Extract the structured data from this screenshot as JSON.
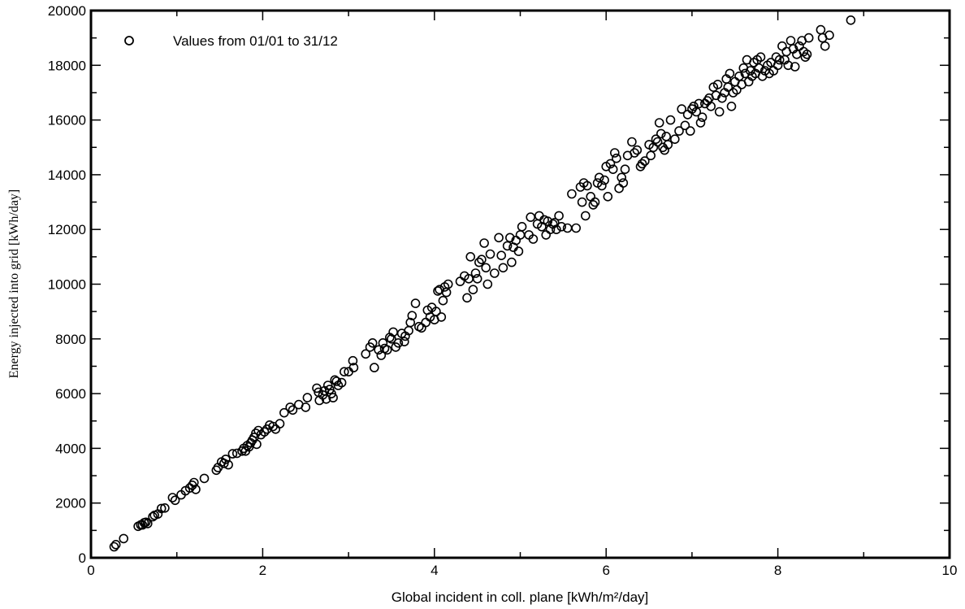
{
  "chart_data": {
    "type": "scatter",
    "title": "",
    "xlabel": "Global incident in coll. plane [kWh/m²/day]",
    "ylabel": "Energy injected into grid [kWh/day]",
    "xlim": [
      0,
      10
    ],
    "ylim": [
      0,
      20000
    ],
    "xticks": [
      0,
      2,
      4,
      6,
      8,
      10
    ],
    "yticks": [
      0,
      2000,
      4000,
      6000,
      8000,
      10000,
      12000,
      14000,
      16000,
      18000,
      20000
    ],
    "grid": false,
    "legend_position": "top-left",
    "marker": "open-circle",
    "series": [
      {
        "name": "Values from 01/01 to 31/12",
        "points": [
          [
            0.27,
            400
          ],
          [
            0.29,
            480
          ],
          [
            0.38,
            700
          ],
          [
            0.55,
            1150
          ],
          [
            0.58,
            1200
          ],
          [
            0.6,
            1200
          ],
          [
            0.62,
            1280
          ],
          [
            0.64,
            1300
          ],
          [
            0.66,
            1250
          ],
          [
            0.72,
            1500
          ],
          [
            0.74,
            1550
          ],
          [
            0.78,
            1600
          ],
          [
            0.82,
            1800
          ],
          [
            0.86,
            1820
          ],
          [
            0.95,
            2200
          ],
          [
            0.98,
            2100
          ],
          [
            1.05,
            2300
          ],
          [
            1.1,
            2450
          ],
          [
            1.15,
            2550
          ],
          [
            1.18,
            2650
          ],
          [
            1.2,
            2750
          ],
          [
            1.22,
            2500
          ],
          [
            1.32,
            2900
          ],
          [
            1.46,
            3200
          ],
          [
            1.48,
            3300
          ],
          [
            1.52,
            3500
          ],
          [
            1.55,
            3450
          ],
          [
            1.57,
            3600
          ],
          [
            1.6,
            3400
          ],
          [
            1.65,
            3800
          ],
          [
            1.7,
            3820
          ],
          [
            1.76,
            3900
          ],
          [
            1.78,
            4000
          ],
          [
            1.8,
            3900
          ],
          [
            1.82,
            4100
          ],
          [
            1.84,
            4050
          ],
          [
            1.86,
            4200
          ],
          [
            1.88,
            4300
          ],
          [
            1.9,
            4400
          ],
          [
            1.92,
            4550
          ],
          [
            1.93,
            4150
          ],
          [
            1.95,
            4650
          ],
          [
            1.98,
            4500
          ],
          [
            2.02,
            4600
          ],
          [
            2.05,
            4700
          ],
          [
            2.08,
            4850
          ],
          [
            2.12,
            4800
          ],
          [
            2.15,
            4700
          ],
          [
            2.2,
            4900
          ],
          [
            2.25,
            5300
          ],
          [
            2.32,
            5500
          ],
          [
            2.35,
            5400
          ],
          [
            2.42,
            5600
          ],
          [
            2.5,
            5500
          ],
          [
            2.52,
            5850
          ],
          [
            2.63,
            6200
          ],
          [
            2.65,
            6050
          ],
          [
            2.66,
            5750
          ],
          [
            2.7,
            5950
          ],
          [
            2.72,
            6100
          ],
          [
            2.74,
            5800
          ],
          [
            2.76,
            6300
          ],
          [
            2.78,
            6150
          ],
          [
            2.8,
            6000
          ],
          [
            2.82,
            5850
          ],
          [
            2.84,
            6500
          ],
          [
            2.86,
            6450
          ],
          [
            2.88,
            6300
          ],
          [
            2.92,
            6400
          ],
          [
            2.95,
            6800
          ],
          [
            3.0,
            6800
          ],
          [
            3.05,
            7200
          ],
          [
            3.06,
            6950
          ],
          [
            3.2,
            7450
          ],
          [
            3.25,
            7700
          ],
          [
            3.28,
            7850
          ],
          [
            3.3,
            6950
          ],
          [
            3.35,
            7600
          ],
          [
            3.38,
            7400
          ],
          [
            3.4,
            7850
          ],
          [
            3.42,
            7650
          ],
          [
            3.45,
            7600
          ],
          [
            3.48,
            8050
          ],
          [
            3.5,
            8000
          ],
          [
            3.52,
            8250
          ],
          [
            3.55,
            7700
          ],
          [
            3.58,
            7850
          ],
          [
            3.62,
            8200
          ],
          [
            3.65,
            7900
          ],
          [
            3.66,
            8100
          ],
          [
            3.7,
            8300
          ],
          [
            3.72,
            8600
          ],
          [
            3.74,
            8850
          ],
          [
            3.78,
            9300
          ],
          [
            3.82,
            8450
          ],
          [
            3.85,
            8400
          ],
          [
            3.9,
            8600
          ],
          [
            3.92,
            9050
          ],
          [
            3.95,
            8800
          ],
          [
            3.97,
            9150
          ],
          [
            4.0,
            8700
          ],
          [
            4.02,
            9000
          ],
          [
            4.04,
            9750
          ],
          [
            4.06,
            9800
          ],
          [
            4.08,
            8800
          ],
          [
            4.1,
            9400
          ],
          [
            4.12,
            9900
          ],
          [
            4.14,
            9700
          ],
          [
            4.16,
            10000
          ],
          [
            4.3,
            10100
          ],
          [
            4.35,
            10300
          ],
          [
            4.38,
            9500
          ],
          [
            4.4,
            10200
          ],
          [
            4.42,
            11000
          ],
          [
            4.45,
            9800
          ],
          [
            4.48,
            10400
          ],
          [
            4.5,
            10200
          ],
          [
            4.52,
            10800
          ],
          [
            4.55,
            10900
          ],
          [
            4.58,
            11500
          ],
          [
            4.6,
            10600
          ],
          [
            4.62,
            10000
          ],
          [
            4.65,
            11100
          ],
          [
            4.7,
            10400
          ],
          [
            4.75,
            11700
          ],
          [
            4.78,
            11050
          ],
          [
            4.8,
            10600
          ],
          [
            4.85,
            11400
          ],
          [
            4.88,
            11700
          ],
          [
            4.9,
            10800
          ],
          [
            4.92,
            11350
          ],
          [
            4.95,
            11600
          ],
          [
            4.98,
            11200
          ],
          [
            5.0,
            11800
          ],
          [
            5.02,
            12100
          ],
          [
            5.1,
            11800
          ],
          [
            5.12,
            12450
          ],
          [
            5.15,
            11650
          ],
          [
            5.2,
            12200
          ],
          [
            5.22,
            12500
          ],
          [
            5.25,
            12100
          ],
          [
            5.28,
            12350
          ],
          [
            5.3,
            11800
          ],
          [
            5.32,
            12300
          ],
          [
            5.35,
            12000
          ],
          [
            5.38,
            12200
          ],
          [
            5.4,
            12250
          ],
          [
            5.42,
            12000
          ],
          [
            5.45,
            12500
          ],
          [
            5.48,
            12100
          ],
          [
            5.55,
            12050
          ],
          [
            5.6,
            13300
          ],
          [
            5.65,
            12050
          ],
          [
            5.7,
            13550
          ],
          [
            5.72,
            13000
          ],
          [
            5.74,
            13700
          ],
          [
            5.76,
            12500
          ],
          [
            5.78,
            13600
          ],
          [
            5.82,
            13200
          ],
          [
            5.85,
            12900
          ],
          [
            5.87,
            13000
          ],
          [
            5.9,
            13700
          ],
          [
            5.92,
            13900
          ],
          [
            5.95,
            13600
          ],
          [
            5.98,
            13800
          ],
          [
            6.0,
            14300
          ],
          [
            6.02,
            13200
          ],
          [
            6.05,
            14400
          ],
          [
            6.08,
            14200
          ],
          [
            6.1,
            14800
          ],
          [
            6.12,
            14600
          ],
          [
            6.15,
            13500
          ],
          [
            6.18,
            13900
          ],
          [
            6.2,
            13700
          ],
          [
            6.22,
            14200
          ],
          [
            6.25,
            14700
          ],
          [
            6.3,
            15200
          ],
          [
            6.33,
            14800
          ],
          [
            6.36,
            14900
          ],
          [
            6.4,
            14300
          ],
          [
            6.42,
            14400
          ],
          [
            6.45,
            14500
          ],
          [
            6.5,
            15100
          ],
          [
            6.52,
            14700
          ],
          [
            6.55,
            15000
          ],
          [
            6.58,
            15300
          ],
          [
            6.6,
            15200
          ],
          [
            6.62,
            15900
          ],
          [
            6.64,
            15500
          ],
          [
            6.66,
            15000
          ],
          [
            6.68,
            14900
          ],
          [
            6.7,
            15400
          ],
          [
            6.72,
            15100
          ],
          [
            6.75,
            16000
          ],
          [
            6.8,
            15300
          ],
          [
            6.85,
            15600
          ],
          [
            6.88,
            16400
          ],
          [
            6.92,
            15800
          ],
          [
            6.95,
            16200
          ],
          [
            6.98,
            15600
          ],
          [
            7.0,
            16400
          ],
          [
            7.02,
            16500
          ],
          [
            7.05,
            16300
          ],
          [
            7.08,
            16600
          ],
          [
            7.1,
            15900
          ],
          [
            7.12,
            16100
          ],
          [
            7.15,
            16600
          ],
          [
            7.18,
            16700
          ],
          [
            7.2,
            16800
          ],
          [
            7.22,
            16500
          ],
          [
            7.25,
            17200
          ],
          [
            7.28,
            16900
          ],
          [
            7.3,
            17300
          ],
          [
            7.32,
            16300
          ],
          [
            7.35,
            16800
          ],
          [
            7.38,
            17000
          ],
          [
            7.4,
            17500
          ],
          [
            7.42,
            17200
          ],
          [
            7.44,
            17700
          ],
          [
            7.46,
            16500
          ],
          [
            7.48,
            17000
          ],
          [
            7.5,
            17400
          ],
          [
            7.52,
            17100
          ],
          [
            7.55,
            17600
          ],
          [
            7.58,
            17300
          ],
          [
            7.6,
            17900
          ],
          [
            7.62,
            17700
          ],
          [
            7.64,
            18200
          ],
          [
            7.66,
            17400
          ],
          [
            7.68,
            17800
          ],
          [
            7.7,
            17600
          ],
          [
            7.72,
            18100
          ],
          [
            7.74,
            17700
          ],
          [
            7.76,
            18200
          ],
          [
            7.78,
            17900
          ],
          [
            7.8,
            18300
          ],
          [
            7.82,
            17600
          ],
          [
            7.85,
            17800
          ],
          [
            7.88,
            18000
          ],
          [
            7.9,
            17700
          ],
          [
            7.92,
            18100
          ],
          [
            7.95,
            17800
          ],
          [
            7.98,
            18300
          ],
          [
            8.0,
            18000
          ],
          [
            8.02,
            18200
          ],
          [
            8.05,
            18700
          ],
          [
            8.08,
            18200
          ],
          [
            8.1,
            18500
          ],
          [
            8.12,
            18000
          ],
          [
            8.15,
            18900
          ],
          [
            8.18,
            18600
          ],
          [
            8.2,
            17950
          ],
          [
            8.22,
            18400
          ],
          [
            8.25,
            18700
          ],
          [
            8.28,
            18900
          ],
          [
            8.3,
            18500
          ],
          [
            8.32,
            18300
          ],
          [
            8.34,
            18400
          ],
          [
            8.36,
            19000
          ],
          [
            8.5,
            19300
          ],
          [
            8.52,
            19000
          ],
          [
            8.55,
            18700
          ],
          [
            8.6,
            19100
          ],
          [
            8.85,
            19650
          ]
        ]
      }
    ]
  }
}
